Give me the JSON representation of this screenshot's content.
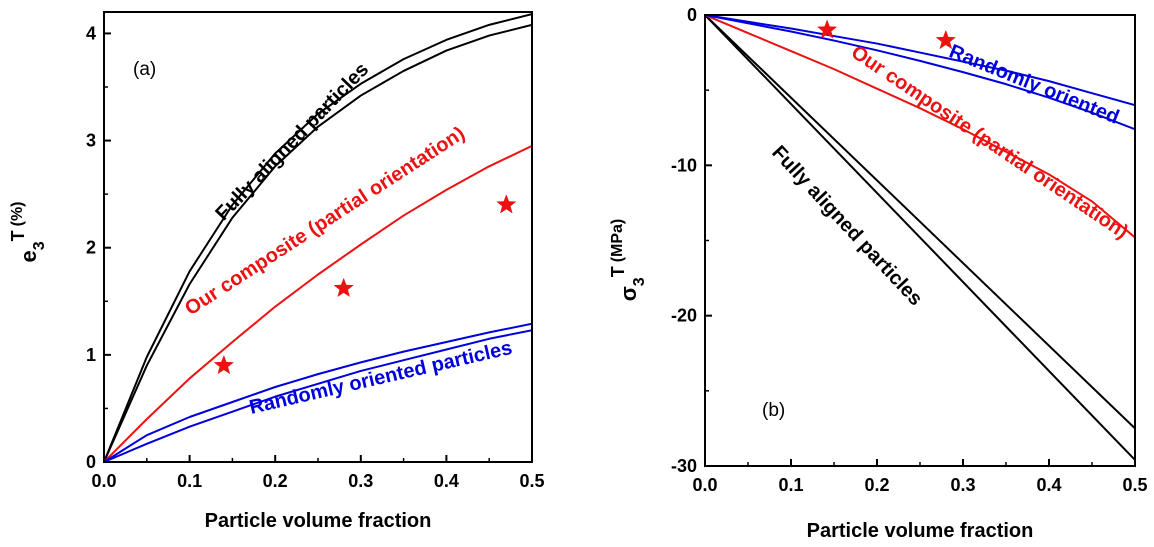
{
  "chart_data": [
    {
      "type": "line",
      "panel_label": "(a)",
      "xlabel": "Particle volume fraction",
      "ylabel": {
        "main": "e",
        "sub": "3",
        "sup": "T",
        "unit": "(%)"
      },
      "xlim": [
        0,
        0.5
      ],
      "ylim": [
        0,
        4.2
      ],
      "x_ticks": [
        "0.0",
        "0.1",
        "0.2",
        "0.3",
        "0.4",
        "0.5"
      ],
      "y_ticks": [
        "0",
        "1",
        "2",
        "3",
        "4"
      ],
      "x_tick_values": [
        0,
        0.1,
        0.2,
        0.3,
        0.4,
        0.5
      ],
      "y_tick_values": [
        0,
        1,
        2,
        3,
        4
      ],
      "grid": false,
      "series": [
        {
          "group": "aligned",
          "color": "#000000",
          "x": [
            0,
            0.05,
            0.1,
            0.15,
            0.2,
            0.25,
            0.3,
            0.35,
            0.4,
            0.45,
            0.5
          ],
          "y": [
            0,
            0.98,
            1.78,
            2.4,
            2.88,
            3.25,
            3.53,
            3.76,
            3.94,
            4.08,
            4.18
          ]
        },
        {
          "group": "aligned",
          "color": "#000000",
          "x": [
            0,
            0.05,
            0.1,
            0.15,
            0.2,
            0.25,
            0.3,
            0.35,
            0.4,
            0.45,
            0.5
          ],
          "y": [
            0,
            0.9,
            1.66,
            2.28,
            2.76,
            3.13,
            3.42,
            3.65,
            3.84,
            3.98,
            4.08
          ]
        },
        {
          "group": "composite",
          "color": "#ee1111",
          "x": [
            0,
            0.05,
            0.1,
            0.15,
            0.2,
            0.25,
            0.3,
            0.35,
            0.4,
            0.45,
            0.5
          ],
          "y": [
            0,
            0.4,
            0.78,
            1.12,
            1.45,
            1.75,
            2.03,
            2.3,
            2.54,
            2.76,
            2.95
          ]
        },
        {
          "group": "random",
          "color": "#0000dd",
          "x": [
            0,
            0.05,
            0.1,
            0.15,
            0.2,
            0.25,
            0.3,
            0.35,
            0.4,
            0.45,
            0.5
          ],
          "y": [
            0,
            0.25,
            0.42,
            0.56,
            0.7,
            0.82,
            0.93,
            1.03,
            1.12,
            1.21,
            1.29
          ]
        },
        {
          "group": "random",
          "color": "#0000dd",
          "x": [
            0,
            0.05,
            0.1,
            0.15,
            0.2,
            0.25,
            0.3,
            0.35,
            0.4,
            0.45,
            0.5
          ],
          "y": [
            0,
            0.17,
            0.33,
            0.47,
            0.61,
            0.73,
            0.85,
            0.95,
            1.05,
            1.15,
            1.23
          ]
        }
      ],
      "markers": {
        "shape": "star",
        "color": "#ee1111",
        "points": [
          {
            "x": 0.14,
            "y": 0.9
          },
          {
            "x": 0.28,
            "y": 1.62
          },
          {
            "x": 0.47,
            "y": 2.4
          }
        ]
      },
      "annotations": [
        {
          "text": "Fully aligned particles",
          "color": "#000000",
          "at": [
            0.225,
            2.95
          ],
          "angle": -46
        },
        {
          "text": "Our composite (partial orientation)",
          "color": "#ee1111",
          "at": [
            0.262,
            2.2
          ],
          "angle": -33
        },
        {
          "text": "Randomly oriented particles",
          "color": "#0000dd",
          "at": [
            0.325,
            0.73
          ],
          "angle": -13
        }
      ]
    },
    {
      "type": "line",
      "panel_label": "(b)",
      "xlabel": "Particle volume fraction",
      "ylabel": {
        "main": "σ",
        "sub": "3",
        "sup": "T",
        "unit": "(MPa)"
      },
      "xlim": [
        0,
        0.5
      ],
      "ylim": [
        -30,
        0
      ],
      "x_ticks": [
        "0.0",
        "0.1",
        "0.2",
        "0.3",
        "0.4",
        "0.5"
      ],
      "y_ticks": [
        "0",
        "-10",
        "-20",
        "-30"
      ],
      "x_tick_values": [
        0,
        0.1,
        0.2,
        0.3,
        0.4,
        0.5
      ],
      "y_tick_values": [
        0,
        -10,
        -20,
        -30
      ],
      "grid": false,
      "series": [
        {
          "group": "aligned",
          "color": "#000000",
          "x": [
            0,
            0.5
          ],
          "y": [
            0,
            -27.5
          ]
        },
        {
          "group": "aligned",
          "color": "#000000",
          "x": [
            0,
            0.5
          ],
          "y": [
            0,
            -29.6
          ]
        },
        {
          "group": "composite",
          "color": "#ee1111",
          "x": [
            0,
            0.05,
            0.1,
            0.15,
            0.2,
            0.25,
            0.3,
            0.35,
            0.4,
            0.45,
            0.5
          ],
          "y": [
            0,
            -1.2,
            -2.4,
            -3.6,
            -4.9,
            -6.2,
            -7.6,
            -9.1,
            -10.6,
            -12.4,
            -14.8
          ]
        },
        {
          "group": "random",
          "color": "#0000dd",
          "x": [
            0,
            0.05,
            0.1,
            0.15,
            0.2,
            0.25,
            0.3,
            0.35,
            0.4,
            0.45,
            0.5
          ],
          "y": [
            0,
            -0.45,
            -0.9,
            -1.4,
            -1.9,
            -2.5,
            -3.1,
            -3.7,
            -4.4,
            -5.2,
            -6.0
          ]
        },
        {
          "group": "random",
          "color": "#0000dd",
          "x": [
            0,
            0.05,
            0.1,
            0.15,
            0.2,
            0.25,
            0.3,
            0.35,
            0.4,
            0.45,
            0.5
          ],
          "y": [
            0,
            -0.55,
            -1.1,
            -1.7,
            -2.35,
            -3.05,
            -3.8,
            -4.6,
            -5.5,
            -6.5,
            -7.6
          ]
        }
      ],
      "markers": {
        "shape": "star",
        "color": "#ee1111",
        "points": [
          {
            "x": 0.142,
            "y": -1.0
          },
          {
            "x": 0.28,
            "y": -1.7
          }
        ]
      },
      "annotations": [
        {
          "text": "Fully aligned particles",
          "color": "#000000",
          "at": [
            0.16,
            -14.3
          ],
          "angle": 47
        },
        {
          "text": "Our composite (partial orientation)",
          "color": "#ee1111",
          "at": [
            0.327,
            -8.8
          ],
          "angle": 34
        },
        {
          "text": "Randomly oriented",
          "color": "#0000dd",
          "at": [
            0.38,
            -5.0
          ],
          "angle": 22
        }
      ]
    }
  ]
}
